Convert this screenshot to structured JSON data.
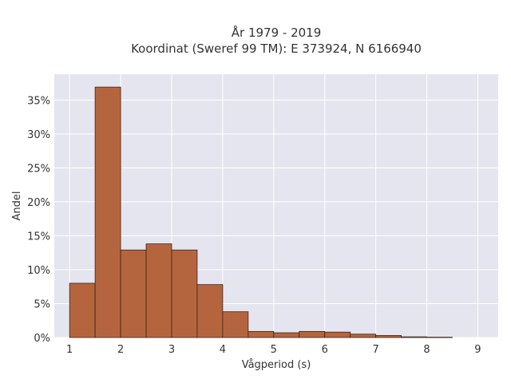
{
  "chart_data": {
    "type": "bar",
    "title_lines": [
      "År 1979 - 2019",
      "Koordinat (Sweref 99 TM): E 373924, N 6166940"
    ],
    "xlabel": "Vågperiod (s)",
    "ylabel": "Andel",
    "x_ticks": [
      1,
      2,
      3,
      4,
      5,
      6,
      7,
      8,
      9
    ],
    "y_ticks": [
      {
        "value": 0,
        "label": "0%"
      },
      {
        "value": 5,
        "label": "5%"
      },
      {
        "value": 10,
        "label": "10%"
      },
      {
        "value": 15,
        "label": "15%"
      },
      {
        "value": 20,
        "label": "20%"
      },
      {
        "value": 25,
        "label": "25%"
      },
      {
        "value": 30,
        "label": "30%"
      },
      {
        "value": 35,
        "label": "35%"
      }
    ],
    "xlim": [
      0.7,
      9.4
    ],
    "ylim": [
      0,
      38.8
    ],
    "bin_width": 0.5,
    "bins": [
      {
        "start": 1.0,
        "value": 8.0
      },
      {
        "start": 1.5,
        "value": 36.9
      },
      {
        "start": 2.0,
        "value": 12.9
      },
      {
        "start": 2.5,
        "value": 13.8
      },
      {
        "start": 3.0,
        "value": 12.9
      },
      {
        "start": 3.5,
        "value": 7.8
      },
      {
        "start": 4.0,
        "value": 3.8
      },
      {
        "start": 4.5,
        "value": 0.9
      },
      {
        "start": 5.0,
        "value": 0.7
      },
      {
        "start": 5.5,
        "value": 0.9
      },
      {
        "start": 6.0,
        "value": 0.8
      },
      {
        "start": 6.5,
        "value": 0.5
      },
      {
        "start": 7.0,
        "value": 0.3
      },
      {
        "start": 7.5,
        "value": 0.1
      },
      {
        "start": 8.0,
        "value": 0.05
      }
    ],
    "grid": true,
    "colors": {
      "bar_fill": "#b5653d",
      "bar_stroke": "#3a2418",
      "plot_bg": "#e5e5ef",
      "grid": "#ffffff"
    }
  }
}
